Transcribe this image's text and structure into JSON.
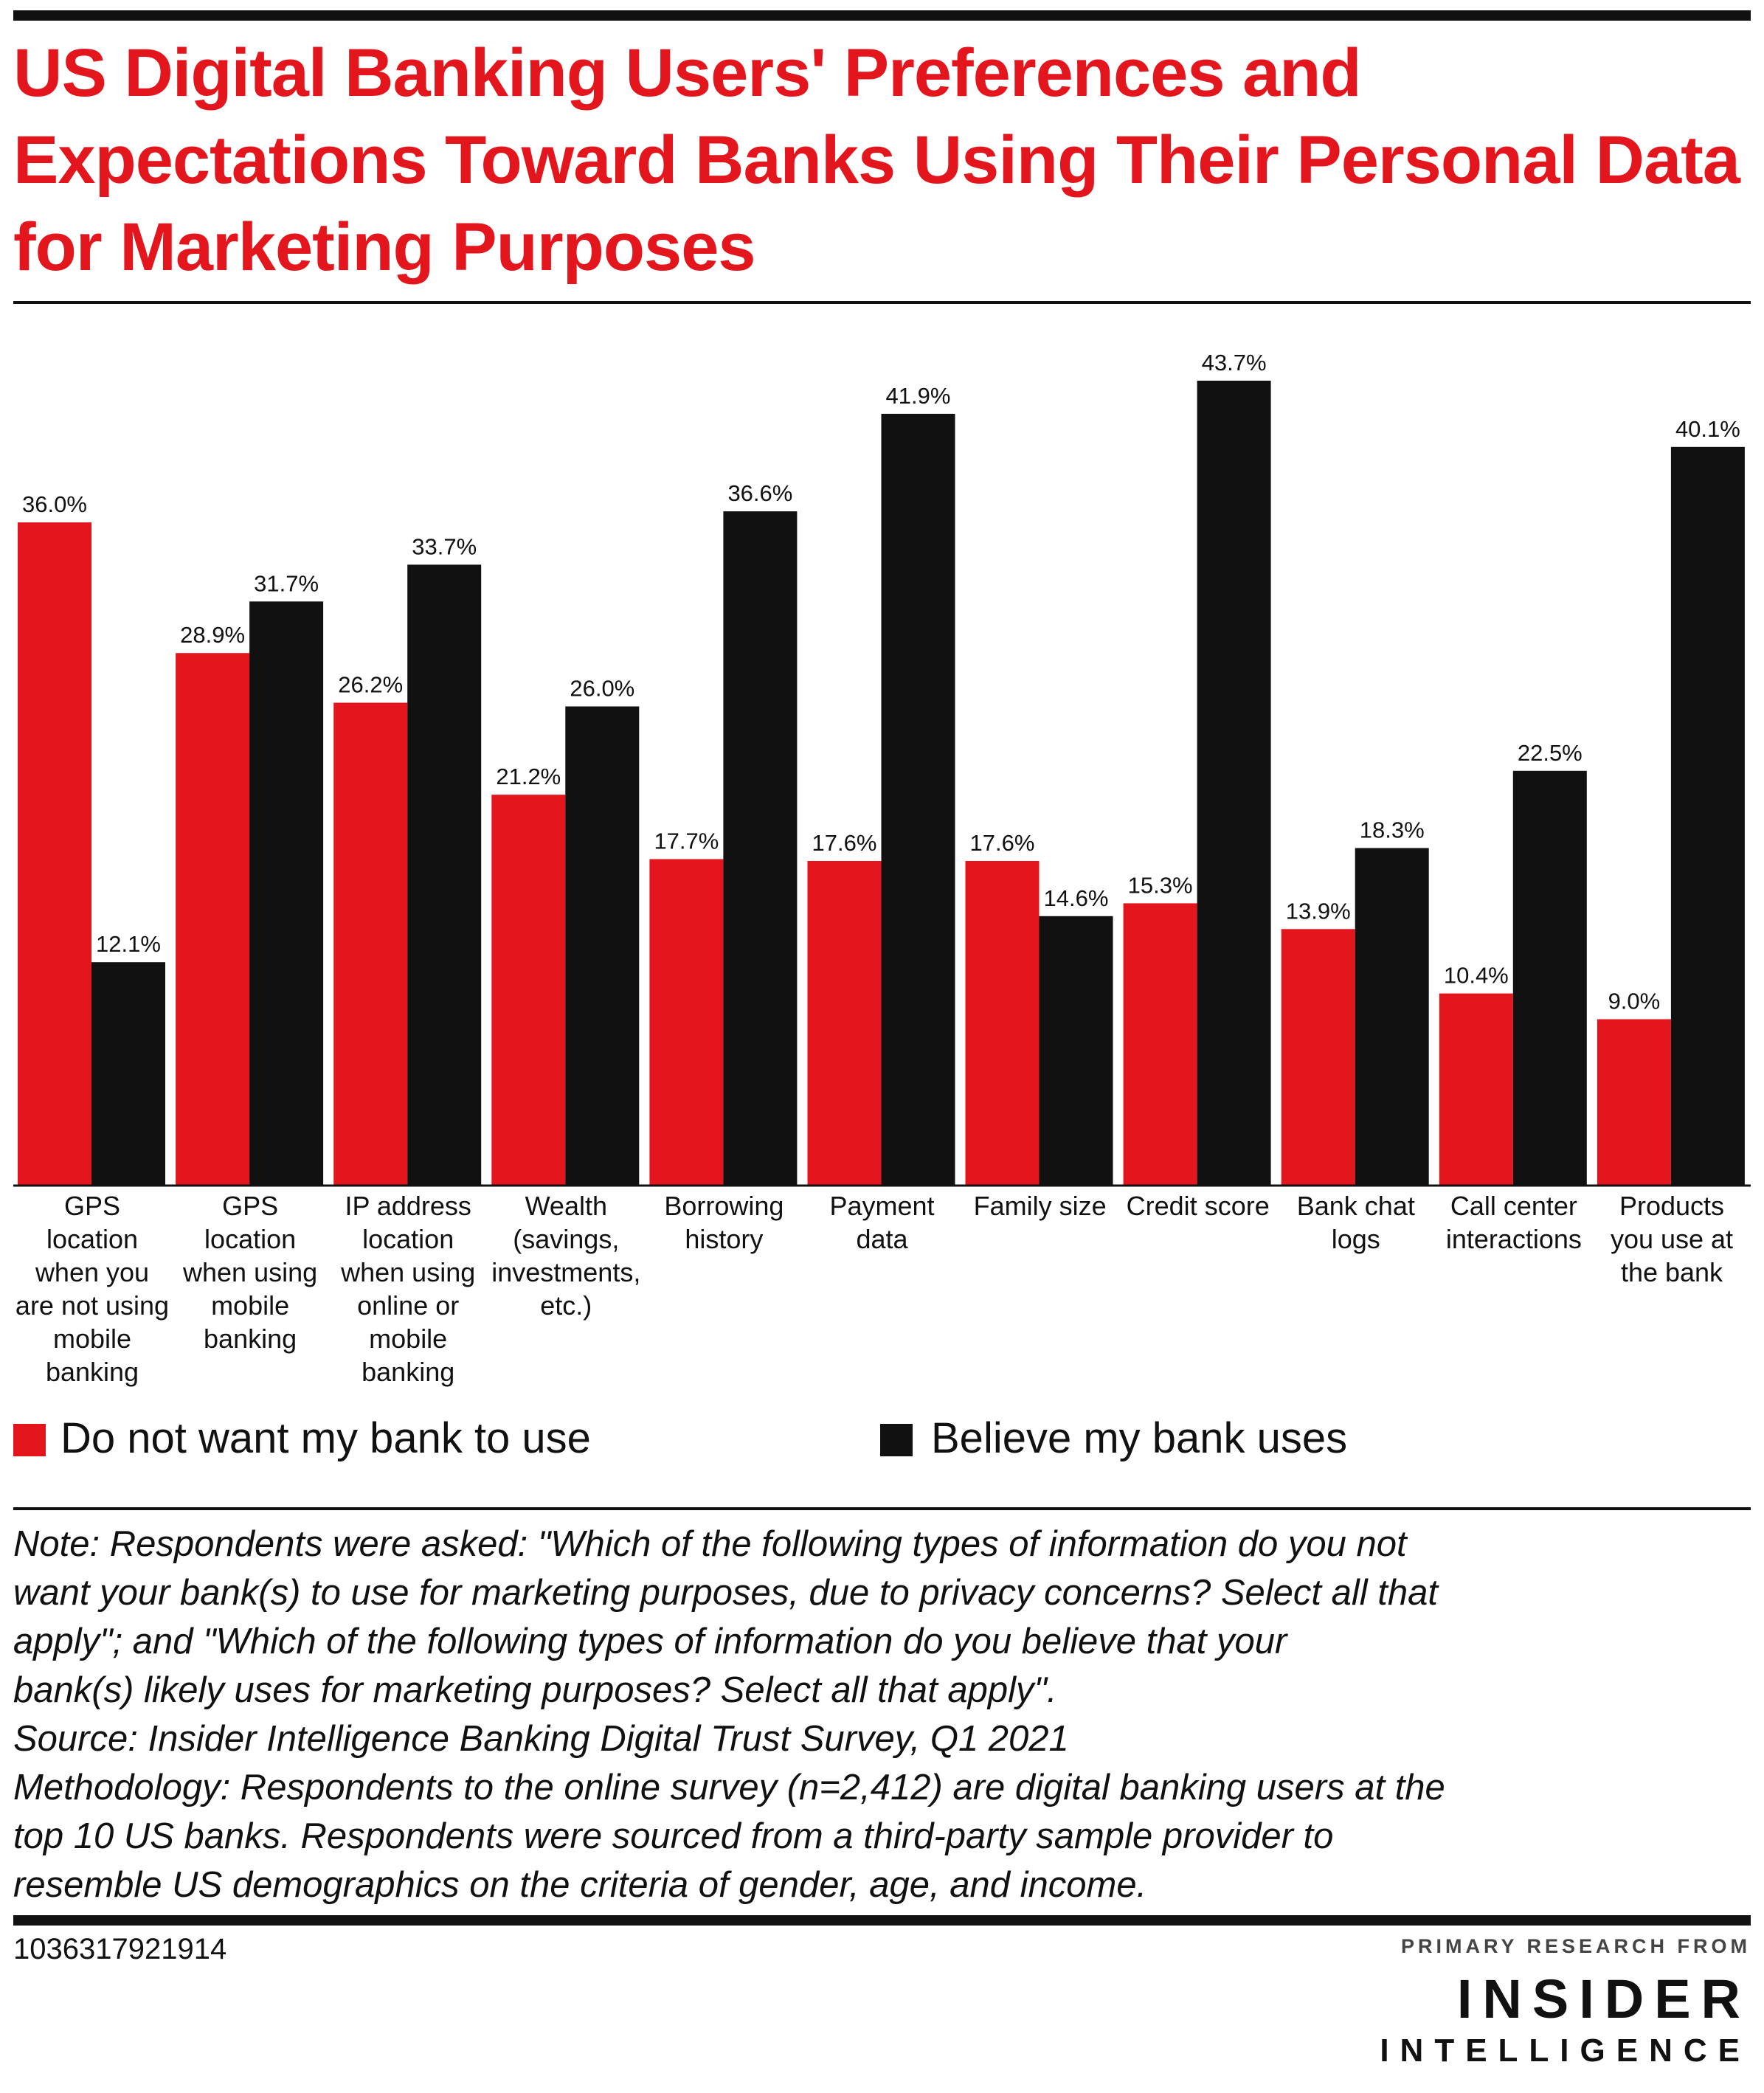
{
  "title": "US Digital Banking Users' Preferences and Expectations Toward Banks Using Their Personal Data for Marketing Purposes",
  "chart_data": {
    "type": "bar",
    "categories": [
      [
        "GPS",
        "location",
        "when you",
        "are not using",
        "mobile",
        "banking"
      ],
      [
        "GPS",
        "location",
        "when using",
        "mobile",
        "banking"
      ],
      [
        "IP address",
        "location",
        "when using",
        "online or",
        "mobile",
        "banking"
      ],
      [
        "Wealth",
        "(savings,",
        "investments,",
        "etc.)"
      ],
      [
        "Borrowing",
        "history"
      ],
      [
        "Payment",
        "data"
      ],
      [
        "Family size"
      ],
      [
        "Credit score"
      ],
      [
        "Bank chat",
        "logs"
      ],
      [
        "Call center",
        "interactions"
      ],
      [
        "Products",
        "you use at",
        "the bank"
      ]
    ],
    "series": [
      {
        "name": "Do not want my bank to use",
        "color": "#e3161e",
        "values": [
          36.0,
          28.9,
          26.2,
          21.2,
          17.7,
          17.6,
          17.6,
          15.3,
          13.9,
          10.4,
          9.0
        ],
        "labels": [
          "36.0%",
          "28.9%",
          "26.2%",
          "21.2%",
          "17.7%",
          "17.6%",
          "17.6%",
          "15.3%",
          "13.9%",
          "10.4%",
          "9.0%"
        ]
      },
      {
        "name": "Believe my bank uses",
        "color": "#111111",
        "values": [
          12.1,
          31.7,
          33.7,
          26.0,
          36.6,
          41.9,
          14.6,
          43.7,
          18.3,
          22.5,
          40.1
        ],
        "labels": [
          "12.1%",
          "31.7%",
          "33.7%",
          "26.0%",
          "36.6%",
          "41.9%",
          "14.6%",
          "43.7%",
          "18.3%",
          "22.5%",
          "40.1%"
        ]
      }
    ],
    "ylim": [
      0,
      45
    ],
    "grid": false,
    "legend_position": "bottom"
  },
  "legend": {
    "series_a": "Do not want my bank to use",
    "series_b": "Believe my bank uses"
  },
  "note": {
    "lines": [
      "Note: Respondents were asked: \"Which of the following types of information do you not",
      "want your bank(s) to use for marketing purposes, due to privacy concerns? Select all that",
      "apply\"; and \"Which of the following types of information do you believe that your",
      "bank(s) likely uses for marketing purposes? Select all that apply\".",
      "Source: Insider Intelligence Banking Digital Trust Survey, Q1 2021",
      "Methodology: Respondents to the online survey (n=2,412) are digital banking users at the",
      "top 10 US banks. Respondents were sourced from a third-party sample provider to",
      "resemble US demographics on the criteria of gender, age, and income."
    ]
  },
  "footer": {
    "chart_id": "1036317921914",
    "brand_top": "PRIMARY RESEARCH FROM",
    "brand_main": "INSIDER",
    "brand_sub": "INTELLIGENCE"
  },
  "colors": {
    "accent": "#e3161e",
    "dark": "#111111"
  }
}
